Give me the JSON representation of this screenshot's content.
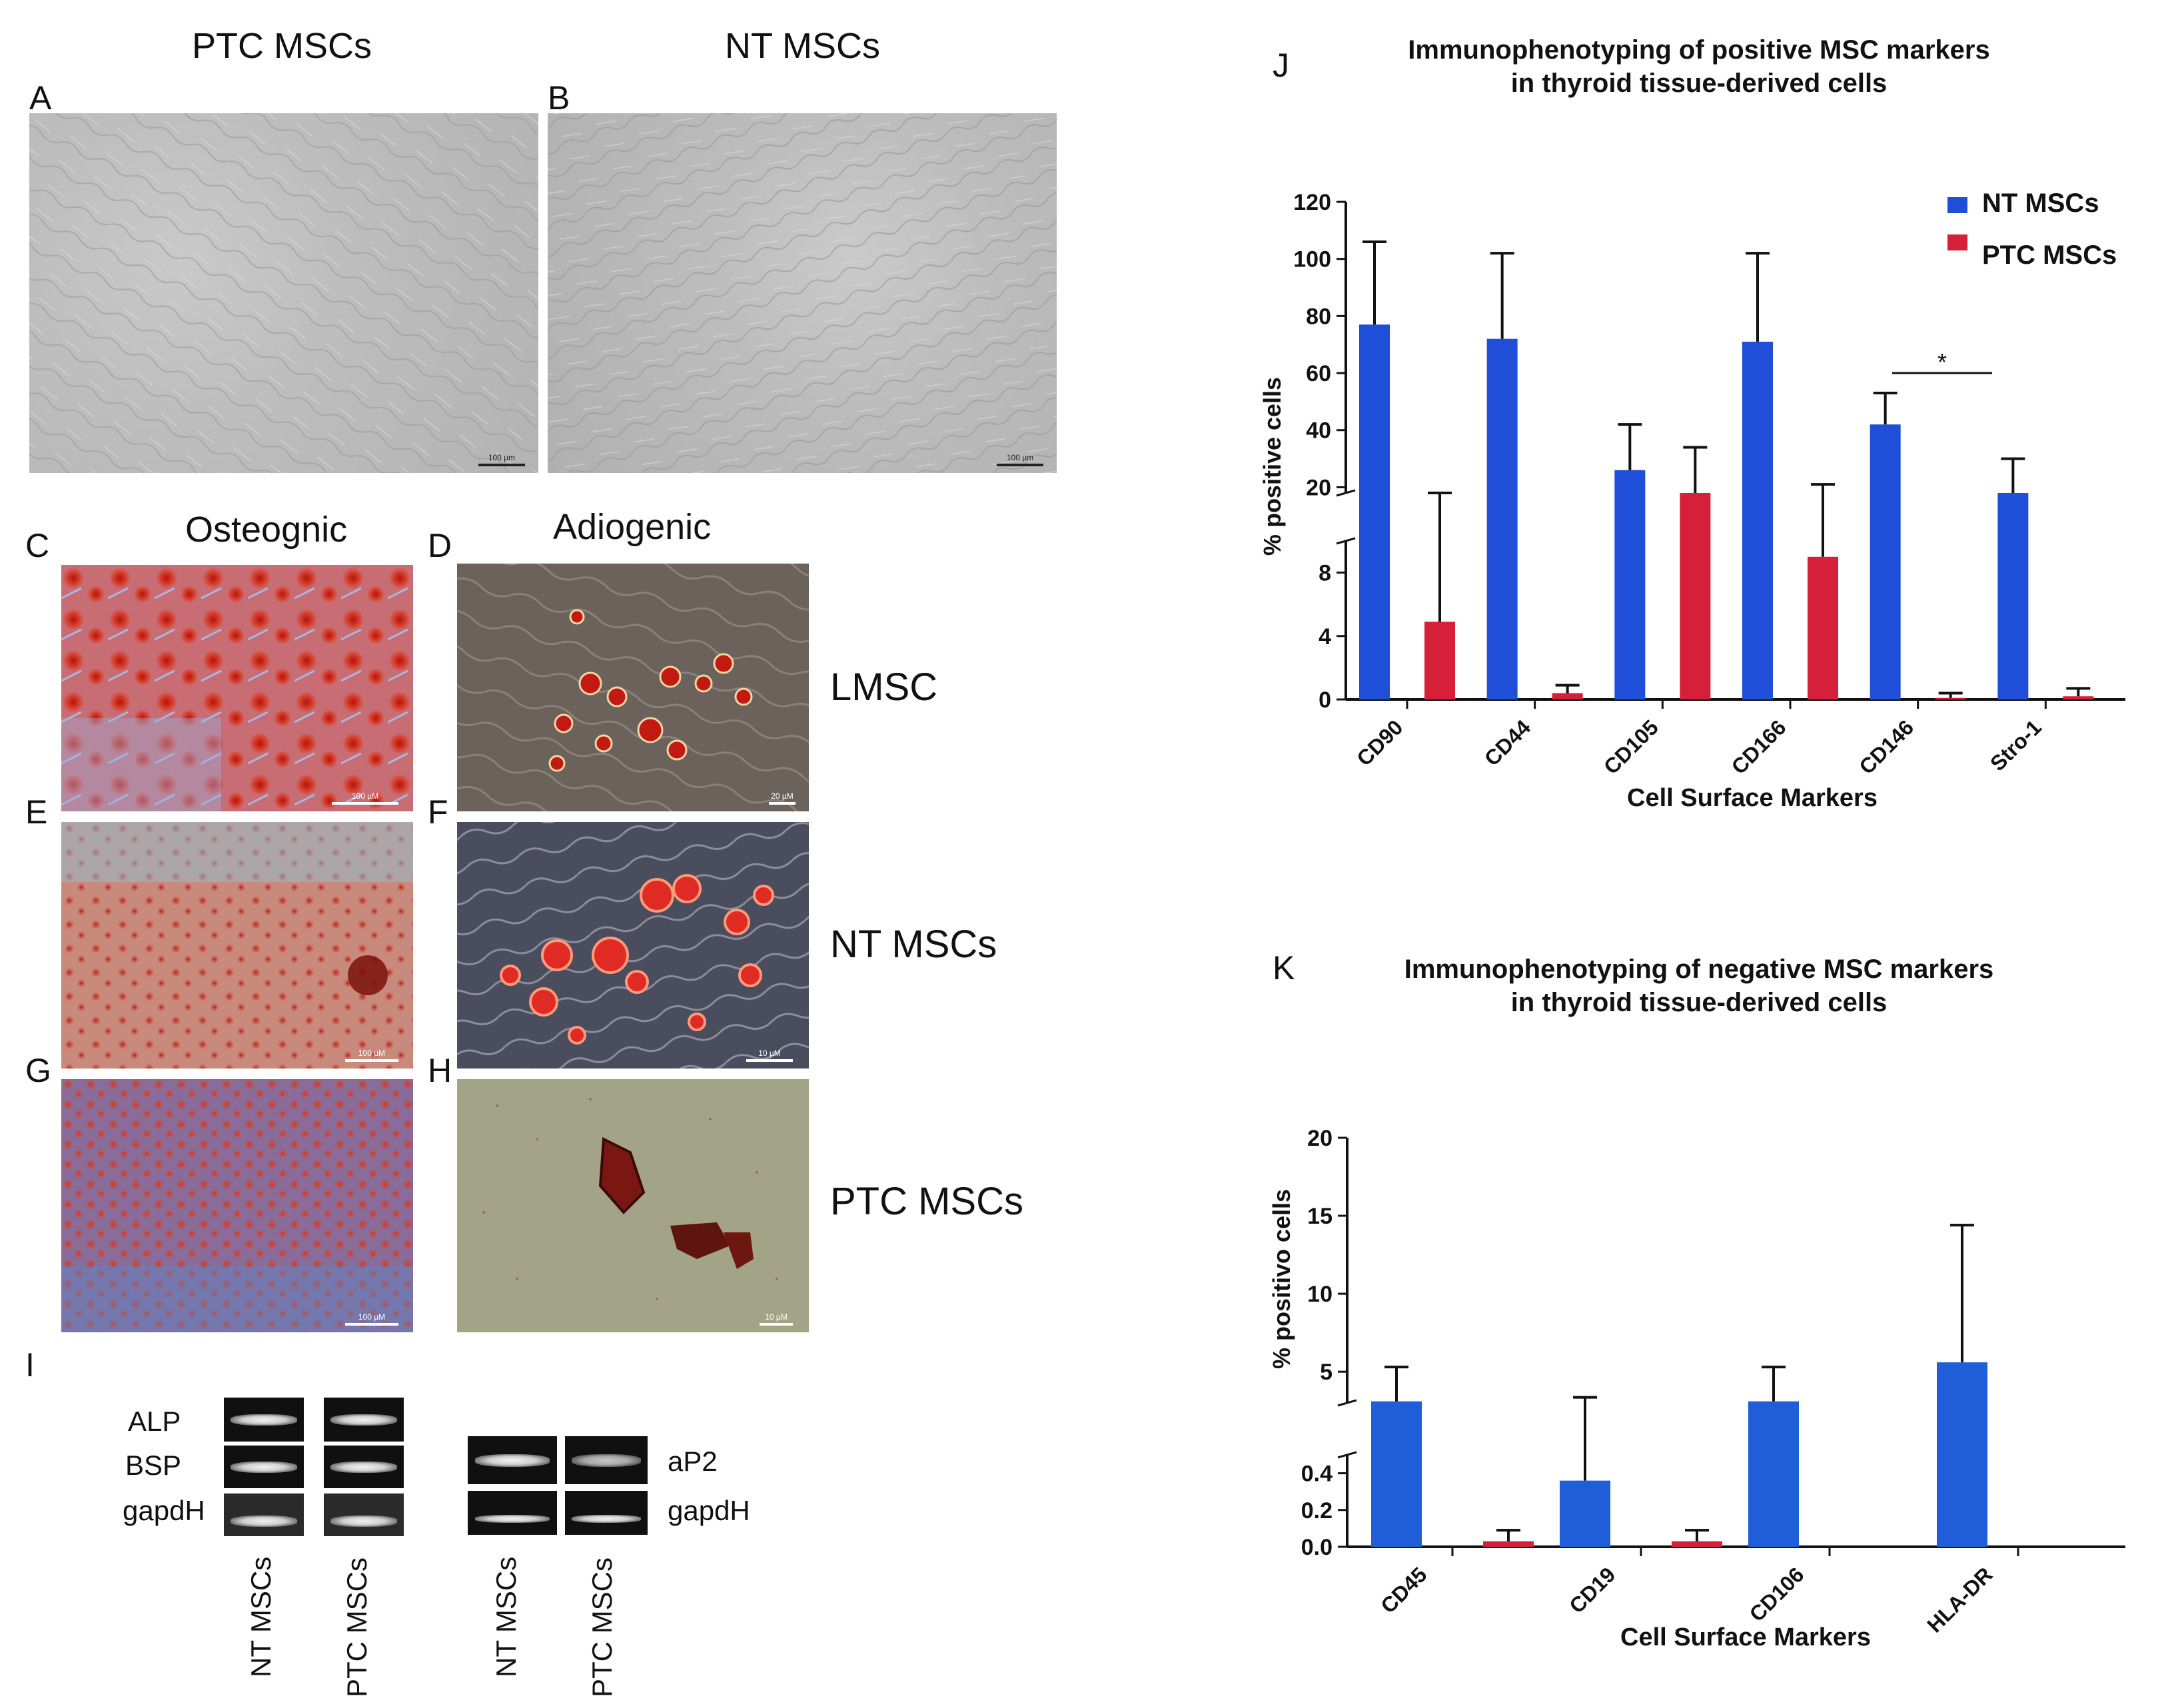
{
  "top": {
    "title_ptc": "PTC MSCs",
    "title_nt": "NT MSCs",
    "letter_a": "A",
    "letter_b": "B",
    "scale_a": "100 µm",
    "scale_b": "100 µm"
  },
  "diff": {
    "title_osteo": "Osteognic",
    "title_adipo": "Adiogenic",
    "letters": [
      "C",
      "D",
      "E",
      "F",
      "G",
      "H"
    ],
    "rows": [
      "LMSC",
      "NT MSCs",
      "PTC MSCs"
    ],
    "scale_c": "100 µM",
    "scale_d": "20 µM",
    "scale_e": "100 µM",
    "scale_f": "10 µM",
    "scale_g": "100 µM",
    "scale_h": "10 µM"
  },
  "gel": {
    "letter": "I",
    "left_genes": [
      "ALP",
      "BSP",
      "gapdH"
    ],
    "right_genes": [
      "aP2",
      "gapdH"
    ],
    "lanes": [
      "NT MSCs",
      "PTC MSCs"
    ]
  },
  "chart_data": [
    {
      "panel": "J",
      "type": "bar",
      "title": "Immunophenotyping of positive MSC markers\nin thyroid tissue-derived cells",
      "title_lines": [
        "Immunophenotyping of positive MSC markers",
        "in thyroid tissue-derived cells"
      ],
      "xlabel": "Cell Surface Markers",
      "ylabel": "% positive cells",
      "categories": [
        "CD90",
        "CD44",
        "CD105",
        "CD166",
        "CD146",
        "Stro-1"
      ],
      "series": [
        {
          "name": "NT MSCs",
          "color": "#1f4fd8",
          "values": [
            77,
            72,
            26,
            71,
            42,
            16
          ],
          "error": [
            29,
            30,
            16,
            31,
            11,
            14
          ]
        },
        {
          "name": "PTC MSCs",
          "color": "#d6203a",
          "values": [
            4.9,
            0.4,
            16,
            9,
            0.1,
            0.2
          ],
          "error": [
            10,
            0.5,
            18,
            12,
            0.3,
            0.5
          ]
        }
      ],
      "y_axis_broken": true,
      "y_ticks_lower": [
        0,
        4,
        8
      ],
      "y_ticks_upper": [
        20,
        40,
        60,
        80,
        100,
        120
      ],
      "ylim_lower": [
        0,
        10
      ],
      "ylim_upper": [
        18,
        120
      ],
      "legend_position": "top-right",
      "annotation": "*",
      "grid": false
    },
    {
      "panel": "K",
      "type": "bar",
      "title": "Immunophenotyping of negative MSC markers\nin thyroid tissue-derived cells",
      "title_lines": [
        "Immunophenotyping of negative MSC markers",
        "in thyroid tissue-derived cells"
      ],
      "xlabel": "Cell Surface Markers",
      "ylabel": "% positivo cells",
      "categories": [
        "CD45",
        "CD19",
        "CD106",
        "HLA-DR"
      ],
      "series": [
        {
          "name": "NT MSCs",
          "color": "#1f5ed8",
          "values": [
            3.1,
            0.36,
            3.1,
            5.6
          ],
          "error": [
            2.2,
            3.0,
            2.2,
            8.8
          ]
        },
        {
          "name": "PTC MSCs",
          "color": "#d6203a",
          "values": [
            0.03,
            0.03,
            0,
            0
          ],
          "error": [
            0.06,
            0.06,
            0,
            0
          ]
        }
      ],
      "y_axis_broken": true,
      "y_ticks_lower": [
        "0.0",
        "0.2",
        "0.4"
      ],
      "y_ticks_upper": [
        "5",
        "10",
        "15",
        "20"
      ],
      "ylim_lower": [
        0,
        0.5
      ],
      "ylim_upper": [
        3,
        20
      ],
      "grid": false
    }
  ]
}
